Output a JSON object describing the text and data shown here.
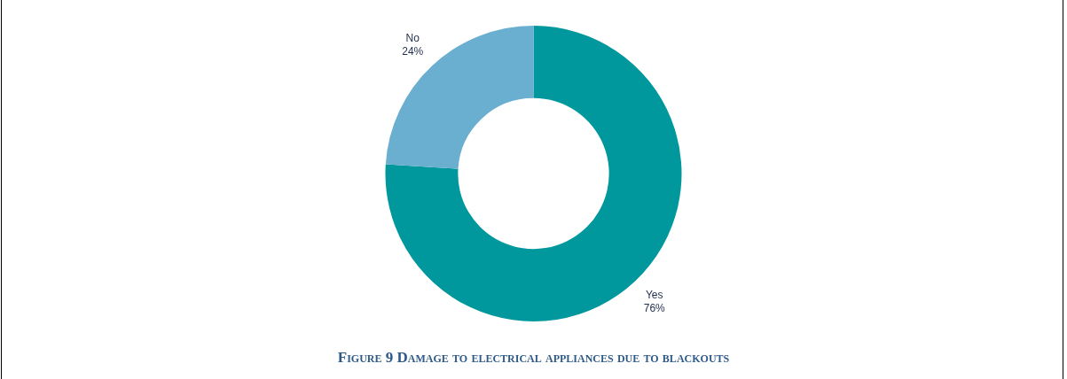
{
  "chart_data": {
    "type": "donut",
    "title": "Figure 9 Damage to electrical appliances due to blackouts",
    "categories": [
      "Yes",
      "No"
    ],
    "values": [
      76,
      24
    ],
    "colors": [
      "#00979d",
      "#6aaed0"
    ],
    "value_labels": [
      "76%",
      "24%"
    ],
    "legend": false
  }
}
